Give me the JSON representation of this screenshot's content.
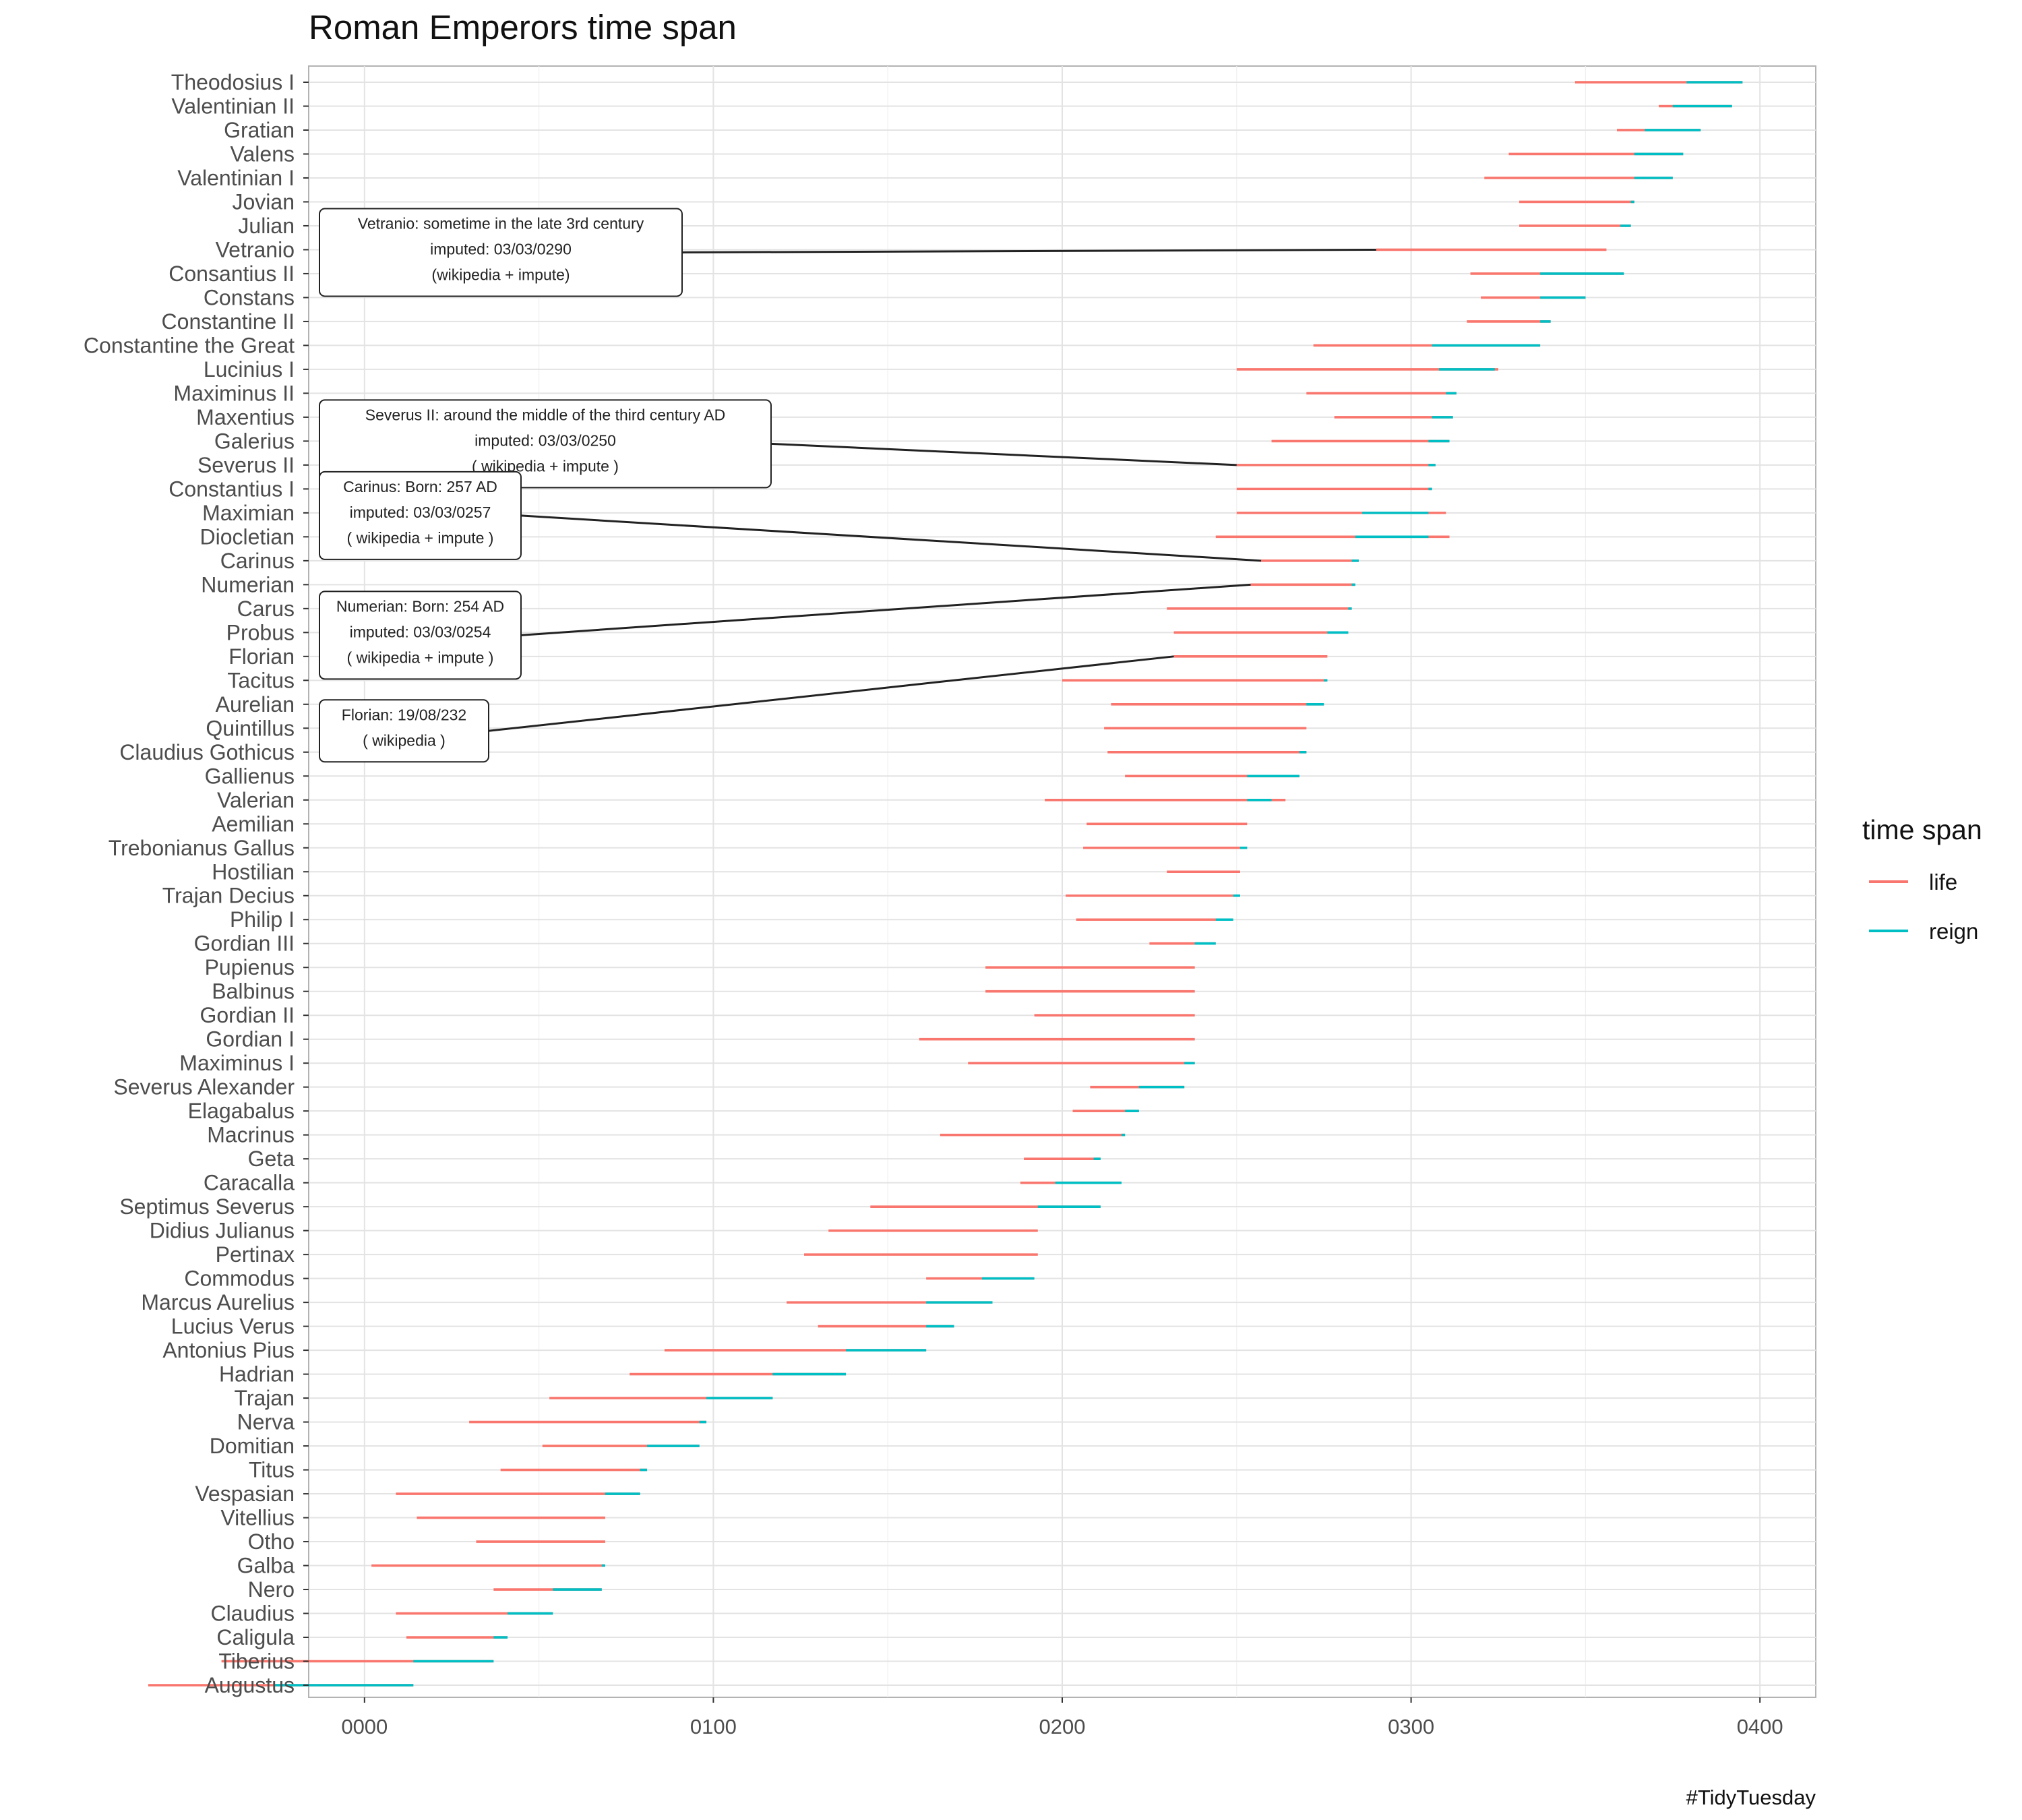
{
  "chart_data": {
    "type": "line",
    "title": "Roman Emperors time span",
    "caption": "#TidyTuesday",
    "xlabel": "",
    "ylabel": "",
    "xlim": [
      -16,
      416
    ],
    "x_ticks": [
      0,
      100,
      200,
      300,
      400
    ],
    "x_tick_labels": [
      "0000",
      "0100",
      "0200",
      "0300",
      "0400"
    ],
    "legend": {
      "title": "time span",
      "placement": "right",
      "entries": [
        {
          "name": "life",
          "color": "#F8766D"
        },
        {
          "name": "reign",
          "color": "#00BFC4"
        }
      ]
    },
    "emperors": [
      {
        "name": "Augustus",
        "birth": -62,
        "death": 14,
        "reign_start": -26,
        "reign_end": 14
      },
      {
        "name": "Tiberius",
        "birth": -41,
        "death": 37,
        "reign_start": 14,
        "reign_end": 37
      },
      {
        "name": "Caligula",
        "birth": 12,
        "death": 41,
        "reign_start": 37,
        "reign_end": 41
      },
      {
        "name": "Claudius",
        "birth": 9,
        "death": 54,
        "reign_start": 41,
        "reign_end": 54
      },
      {
        "name": "Nero",
        "birth": 37,
        "death": 68,
        "reign_start": 54,
        "reign_end": 68
      },
      {
        "name": "Galba",
        "birth": 2,
        "death": 69,
        "reign_start": 68,
        "reign_end": 69
      },
      {
        "name": "Otho",
        "birth": 32,
        "death": 69,
        "reign_start": 69,
        "reign_end": 69
      },
      {
        "name": "Vitellius",
        "birth": 15,
        "death": 69,
        "reign_start": 69,
        "reign_end": 69
      },
      {
        "name": "Vespasian",
        "birth": 9,
        "death": 79,
        "reign_start": 69,
        "reign_end": 79
      },
      {
        "name": "Titus",
        "birth": 39,
        "death": 81,
        "reign_start": 79,
        "reign_end": 81
      },
      {
        "name": "Domitian",
        "birth": 51,
        "death": 96,
        "reign_start": 81,
        "reign_end": 96
      },
      {
        "name": "Nerva",
        "birth": 30,
        "death": 98,
        "reign_start": 96,
        "reign_end": 98
      },
      {
        "name": "Trajan",
        "birth": 53,
        "death": 117,
        "reign_start": 98,
        "reign_end": 117
      },
      {
        "name": "Hadrian",
        "birth": 76,
        "death": 138,
        "reign_start": 117,
        "reign_end": 138
      },
      {
        "name": "Antonius Pius",
        "birth": 86,
        "death": 161,
        "reign_start": 138,
        "reign_end": 161
      },
      {
        "name": "Lucius Verus",
        "birth": 130,
        "death": 169,
        "reign_start": 161,
        "reign_end": 169
      },
      {
        "name": "Marcus Aurelius",
        "birth": 121,
        "death": 180,
        "reign_start": 161,
        "reign_end": 180
      },
      {
        "name": "Commodus",
        "birth": 161,
        "death": 192,
        "reign_start": 177,
        "reign_end": 192
      },
      {
        "name": "Pertinax",
        "birth": 126,
        "death": 193,
        "reign_start": 193,
        "reign_end": 193
      },
      {
        "name": "Didius Julianus",
        "birth": 133,
        "death": 193,
        "reign_start": 193,
        "reign_end": 193
      },
      {
        "name": "Septimus Severus",
        "birth": 145,
        "death": 211,
        "reign_start": 193,
        "reign_end": 211
      },
      {
        "name": "Caracalla",
        "birth": 188,
        "death": 217,
        "reign_start": 198,
        "reign_end": 217
      },
      {
        "name": "Geta",
        "birth": 189,
        "death": 211,
        "reign_start": 209,
        "reign_end": 211
      },
      {
        "name": "Macrinus",
        "birth": 165,
        "death": 218,
        "reign_start": 217,
        "reign_end": 218
      },
      {
        "name": "Elagabalus",
        "birth": 203,
        "death": 222,
        "reign_start": 218,
        "reign_end": 222
      },
      {
        "name": "Severus Alexander",
        "birth": 208,
        "death": 235,
        "reign_start": 222,
        "reign_end": 235
      },
      {
        "name": "Maximinus I",
        "birth": 173,
        "death": 238,
        "reign_start": 235,
        "reign_end": 238
      },
      {
        "name": "Gordian I",
        "birth": 159,
        "death": 238,
        "reign_start": 238,
        "reign_end": 238
      },
      {
        "name": "Gordian II",
        "birth": 192,
        "death": 238,
        "reign_start": 238,
        "reign_end": 238
      },
      {
        "name": "Balbinus",
        "birth": 178,
        "death": 238,
        "reign_start": 238,
        "reign_end": 238
      },
      {
        "name": "Pupienus",
        "birth": 178,
        "death": 238,
        "reign_start": 238,
        "reign_end": 238
      },
      {
        "name": "Gordian III",
        "birth": 225,
        "death": 244,
        "reign_start": 238,
        "reign_end": 244
      },
      {
        "name": "Philip I",
        "birth": 204,
        "death": 249,
        "reign_start": 244,
        "reign_end": 249
      },
      {
        "name": "Trajan Decius",
        "birth": 201,
        "death": 251,
        "reign_start": 249,
        "reign_end": 251
      },
      {
        "name": "Hostilian",
        "birth": 230,
        "death": 251,
        "reign_start": 251,
        "reign_end": 251
      },
      {
        "name": "Trebonianus Gallus",
        "birth": 206,
        "death": 253,
        "reign_start": 251,
        "reign_end": 253
      },
      {
        "name": "Aemilian",
        "birth": 207,
        "death": 253,
        "reign_start": 253,
        "reign_end": 253
      },
      {
        "name": "Valerian",
        "birth": 195,
        "death": 264,
        "reign_start": 253,
        "reign_end": 260
      },
      {
        "name": "Gallienus",
        "birth": 218,
        "death": 268,
        "reign_start": 253,
        "reign_end": 268
      },
      {
        "name": "Claudius Gothicus",
        "birth": 213,
        "death": 270,
        "reign_start": 268,
        "reign_end": 270
      },
      {
        "name": "Quintillus",
        "birth": 212,
        "death": 270,
        "reign_start": 270,
        "reign_end": 270
      },
      {
        "name": "Aurelian",
        "birth": 214,
        "death": 275,
        "reign_start": 270,
        "reign_end": 275
      },
      {
        "name": "Tacitus",
        "birth": 200,
        "death": 276,
        "reign_start": 275,
        "reign_end": 276
      },
      {
        "name": "Florian",
        "birth": 232,
        "death": 276,
        "reign_start": 276,
        "reign_end": 276
      },
      {
        "name": "Probus",
        "birth": 232,
        "death": 282,
        "reign_start": 276,
        "reign_end": 282
      },
      {
        "name": "Carus",
        "birth": 230,
        "death": 283,
        "reign_start": 282,
        "reign_end": 283
      },
      {
        "name": "Numerian",
        "birth": 254,
        "death": 284,
        "reign_start": 283,
        "reign_end": 284
      },
      {
        "name": "Carinus",
        "birth": 257,
        "death": 285,
        "reign_start": 283,
        "reign_end": 285
      },
      {
        "name": "Diocletian",
        "birth": 244,
        "death": 311,
        "reign_start": 284,
        "reign_end": 305
      },
      {
        "name": "Maximian",
        "birth": 250,
        "death": 310,
        "reign_start": 286,
        "reign_end": 305
      },
      {
        "name": "Constantius I",
        "birth": 250,
        "death": 306,
        "reign_start": 305,
        "reign_end": 306
      },
      {
        "name": "Severus II",
        "birth": 250,
        "death": 307,
        "reign_start": 305,
        "reign_end": 307
      },
      {
        "name": "Galerius",
        "birth": 260,
        "death": 311,
        "reign_start": 305,
        "reign_end": 311
      },
      {
        "name": "Maxentius",
        "birth": 278,
        "death": 312,
        "reign_start": 306,
        "reign_end": 312
      },
      {
        "name": "Maximinus II",
        "birth": 270,
        "death": 313,
        "reign_start": 310,
        "reign_end": 313
      },
      {
        "name": "Lucinius I",
        "birth": 250,
        "death": 325,
        "reign_start": 308,
        "reign_end": 324
      },
      {
        "name": "Constantine the Great",
        "birth": 272,
        "death": 337,
        "reign_start": 306,
        "reign_end": 337
      },
      {
        "name": "Constantine II",
        "birth": 316,
        "death": 340,
        "reign_start": 337,
        "reign_end": 340
      },
      {
        "name": "Constans",
        "birth": 320,
        "death": 350,
        "reign_start": 337,
        "reign_end": 350
      },
      {
        "name": "Consantius II",
        "birth": 317,
        "death": 361,
        "reign_start": 337,
        "reign_end": 361
      },
      {
        "name": "Vetranio",
        "birth": 290,
        "death": 356,
        "reign_start": 350,
        "reign_end": 350
      },
      {
        "name": "Julian",
        "birth": 331,
        "death": 363,
        "reign_start": 360,
        "reign_end": 363
      },
      {
        "name": "Jovian",
        "birth": 331,
        "death": 364,
        "reign_start": 363,
        "reign_end": 364
      },
      {
        "name": "Valentinian I",
        "birth": 321,
        "death": 375,
        "reign_start": 364,
        "reign_end": 375
      },
      {
        "name": "Valens",
        "birth": 328,
        "death": 378,
        "reign_start": 364,
        "reign_end": 378
      },
      {
        "name": "Gratian",
        "birth": 359,
        "death": 383,
        "reign_start": 367,
        "reign_end": 383
      },
      {
        "name": "Valentinian II",
        "birth": 371,
        "death": 392,
        "reign_start": 375,
        "reign_end": 392
      },
      {
        "name": "Theodosius I",
        "birth": 347,
        "death": 395,
        "reign_start": 379,
        "reign_end": 395
      }
    ],
    "annotations": [
      {
        "emperor": "Vetranio",
        "lines": [
          "Vetranio: sometime in the late 3rd century",
          "imputed: 03/03/0290",
          "(wikipedia + impute)"
        ],
        "target_year": 290,
        "label_row": "Vetranio"
      },
      {
        "emperor": "Severus II",
        "lines": [
          "Severus II: around the middle of the third century AD",
          "imputed: 03/03/0250",
          "( wikipedia + impute )"
        ],
        "target_year": 250,
        "label_row": "Galerius"
      },
      {
        "emperor": "Carinus",
        "lines": [
          "Carinus: Born: 257 AD",
          "imputed: 03/03/0257",
          "( wikipedia + impute )"
        ],
        "target_year": 257,
        "label_row": "Maximian"
      },
      {
        "emperor": "Numerian",
        "lines": [
          "Numerian: Born: 254 AD",
          "imputed: 03/03/0254",
          "( wikipedia + impute )"
        ],
        "target_year": 254,
        "label_row": "Probus"
      },
      {
        "emperor": "Florian",
        "lines": [
          "Florian: 19/08/232",
          "( wikipedia )"
        ],
        "target_year": 232,
        "label_row": "Quintillus"
      }
    ]
  }
}
